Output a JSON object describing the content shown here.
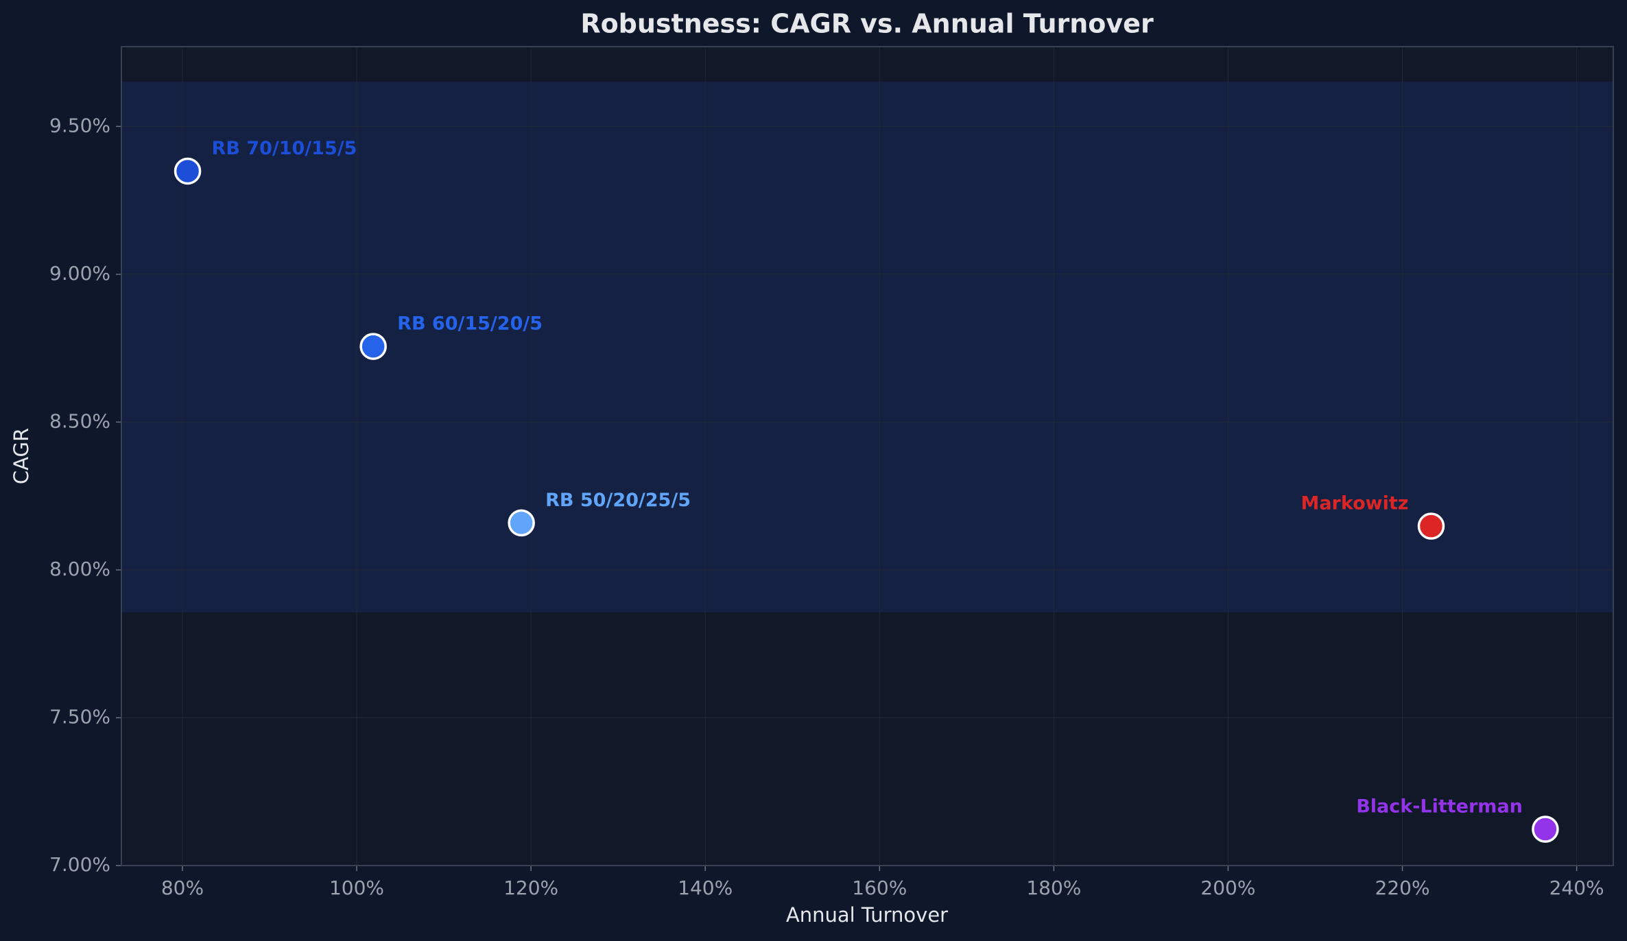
{
  "chart_data": {
    "type": "scatter",
    "title": "Robustness: CAGR vs. Annual Turnover",
    "x_label": "Annual Turnover",
    "y_label": "CAGR",
    "xlim": [
      73,
      244.2
    ],
    "ylim": [
      7.0,
      9.77
    ],
    "xticks": [
      {
        "value": 80,
        "label": "80%"
      },
      {
        "value": 100,
        "label": "100%"
      },
      {
        "value": 120,
        "label": "120%"
      },
      {
        "value": 140,
        "label": "140%"
      },
      {
        "value": 160,
        "label": "160%"
      },
      {
        "value": 180,
        "label": "180%"
      },
      {
        "value": 200,
        "label": "200%"
      },
      {
        "value": 220,
        "label": "220%"
      },
      {
        "value": 240,
        "label": "240%"
      }
    ],
    "yticks": [
      {
        "value": 7.0,
        "label": "7.00%"
      },
      {
        "value": 7.5,
        "label": "7.50%"
      },
      {
        "value": 8.0,
        "label": "8.00%"
      },
      {
        "value": 8.5,
        "label": "8.50%"
      },
      {
        "value": 9.0,
        "label": "9.00%"
      },
      {
        "value": 9.5,
        "label": "9.50%"
      }
    ],
    "grid": true,
    "shaded_band": [
      7.857,
      9.651
    ],
    "series": [
      {
        "name": "RB 70/10/15/5",
        "color": "#1d4ed8",
        "x": [
          80.6
        ],
        "values": [
          9.349
        ]
      },
      {
        "name": "RB 60/15/20/5",
        "color": "#2563eb",
        "x": [
          101.9
        ],
        "values": [
          8.756
        ]
      },
      {
        "name": "RB 50/20/25/5",
        "color": "#60a5fa",
        "x": [
          118.9
        ],
        "values": [
          8.159
        ]
      },
      {
        "name": "Markowitz",
        "color": "#dc2626",
        "x": [
          223.3
        ],
        "values": [
          8.148
        ]
      },
      {
        "name": "Black-Litterman",
        "color": "#9333ea",
        "x": [
          236.4
        ],
        "values": [
          7.123
        ]
      }
    ]
  }
}
